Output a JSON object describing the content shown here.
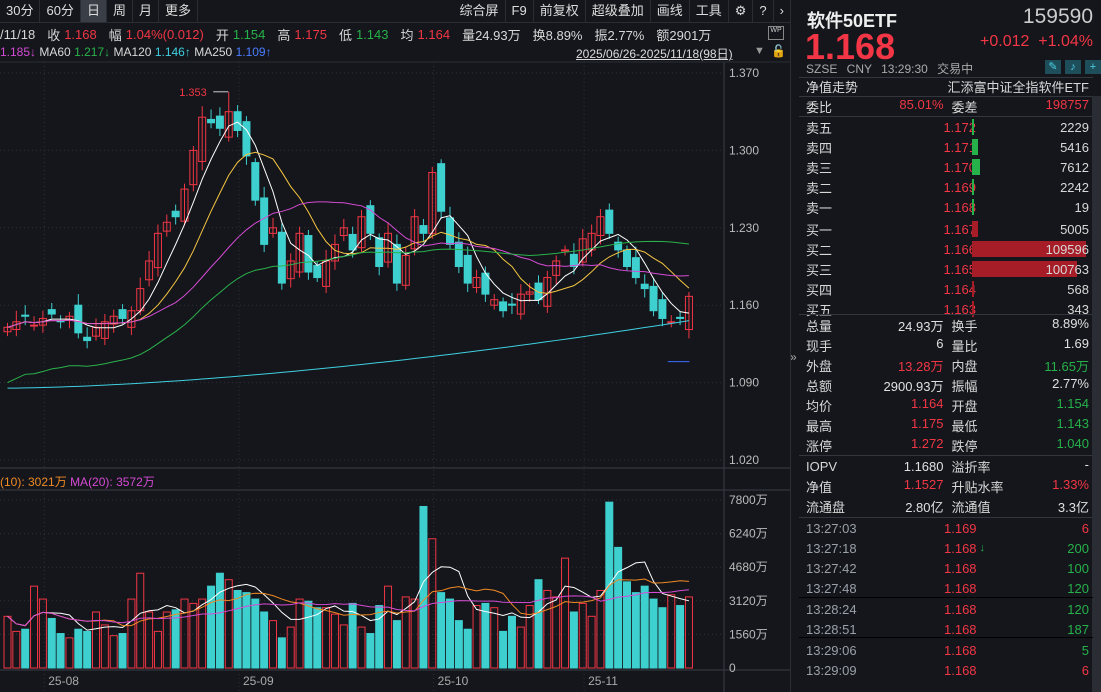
{
  "toolbar": {
    "periods": [
      "30分",
      "60分",
      "日",
      "周",
      "月",
      "更多"
    ],
    "active": "日",
    "tools": [
      "综合屏",
      "F9",
      "前复权",
      "超级叠加",
      "画线",
      "工具"
    ]
  },
  "info": {
    "date": "/11/18",
    "close_label": "收",
    "close": "1.168",
    "amp_label": "幅",
    "amp": "1.04%(0.012)",
    "open_label": "开",
    "open": "1.154",
    "high_label": "高",
    "high": "1.175",
    "low_label": "低",
    "low": "1.143",
    "avg_label": "均",
    "avg": "1.164",
    "vol": "量24.93万",
    "turnover": "换8.89%",
    "swing": "振2.77%",
    "amount": "额2901万"
  },
  "ma": {
    "ma_partial": "1.185↓",
    "ma60_label": "MA60",
    "ma60": "1.217↓",
    "ma120_label": "MA120",
    "ma120": "1.146↑",
    "ma250_label": "MA250",
    "ma250": "1.109↑"
  },
  "range": "2025/06/26-2025/11/18(98日)",
  "vol_header": {
    "ma10": "(10): 3021万",
    "ma20": "MA(20): 3572万"
  },
  "colors": {
    "up": "#f23645",
    "down": "#3ecfcf",
    "ma5": "#ffffff",
    "ma10": "#f5c542",
    "ma20": "#d54bd5",
    "ma60": "#2bb24c",
    "ma120": "#3fd0e0",
    "ma250": "#3b6cff"
  },
  "chart_data": {
    "type": "candlestick",
    "price_ticks": [
      "1.370",
      "1.300",
      "1.230",
      "1.160",
      "1.090",
      "1.020"
    ],
    "price_range": [
      1.02,
      1.37
    ],
    "vol_ticks": [
      "7800万",
      "6240万",
      "4680万",
      "3120万",
      "1560万",
      "0"
    ],
    "vol_range": [
      0,
      7800
    ],
    "x_labels": [
      {
        "label": "25-08",
        "index": 5
      },
      {
        "label": "25-09",
        "index": 27
      },
      {
        "label": "25-10",
        "index": 49
      },
      {
        "label": "25-11",
        "index": 66
      }
    ],
    "high_annotation": "1.353",
    "close": [
      1.14,
      1.145,
      1.15,
      1.142,
      1.148,
      1.152,
      1.145,
      1.15,
      1.135,
      1.128,
      1.14,
      1.145,
      1.15,
      1.148,
      1.155,
      1.175,
      1.2,
      1.225,
      1.235,
      1.24,
      1.265,
      1.3,
      1.33,
      1.325,
      1.32,
      1.335,
      1.318,
      1.295,
      1.255,
      1.215,
      1.23,
      1.18,
      1.2,
      1.225,
      1.19,
      1.185,
      1.2,
      1.215,
      1.23,
      1.21,
      1.24,
      1.225,
      1.195,
      1.225,
      1.18,
      1.205,
      1.24,
      1.225,
      1.28,
      1.245,
      1.215,
      1.195,
      1.18,
      1.185,
      1.17,
      1.165,
      1.155,
      1.16,
      1.17,
      1.172,
      1.165,
      1.185,
      1.2,
      1.21,
      1.195,
      1.22,
      1.225,
      1.24,
      1.225,
      1.21,
      1.195,
      1.185,
      1.175,
      1.155,
      1.148,
      1.145,
      1.148,
      1.168
    ],
    "volume": [
      2400,
      1700,
      1800,
      3800,
      3200,
      2300,
      1600,
      1400,
      1800,
      1700,
      2600,
      2000,
      1500,
      1600,
      3200,
      4400,
      2600,
      1700,
      2600,
      2700,
      3200,
      3000,
      3200,
      3800,
      4400,
      4100,
      3600,
      3500,
      3200,
      2600,
      2200,
      1400,
      1900,
      3200,
      3100,
      2800,
      2800,
      2500,
      2000,
      3000,
      1900,
      1600,
      2900,
      3800,
      2200,
      3300,
      3200,
      7500,
      6000,
      3500,
      3200,
      2200,
      1800,
      2900,
      3000,
      2800,
      1700,
      2400,
      1900,
      2900,
      4100,
      3600,
      3300,
      5100,
      2600,
      3000,
      2400,
      3600,
      7700,
      5600,
      4000,
      3500,
      3800,
      3200,
      2800,
      3400,
      2900,
      3300
    ],
    "ma5_vol_current": "",
    "ma_last": {
      "ma120": 1.146,
      "ma250": 1.109
    }
  },
  "quote": {
    "name": "软件50ETF",
    "code": "159590",
    "price": "1.168",
    "change": "+0.012",
    "pct": "+1.04%",
    "meta": "SZSE CNY 13:29:30 交易中",
    "nav_label": "净值走势",
    "fund_name": "汇添富中证全指软件ETF",
    "wb_label": "委比",
    "wb": "85.01%",
    "wc_label": "委差",
    "wc": "198757"
  },
  "book": {
    "asks": [
      {
        "label": "卖五",
        "price": "1.172",
        "vol": "2229",
        "frac": 0.02
      },
      {
        "label": "卖四",
        "price": "1.171",
        "vol": "5416",
        "frac": 0.05
      },
      {
        "label": "卖三",
        "price": "1.170",
        "vol": "7612",
        "frac": 0.07
      },
      {
        "label": "卖二",
        "price": "1.169",
        "vol": "2242",
        "frac": 0.02
      },
      {
        "label": "卖一",
        "price": "1.168",
        "vol": "19",
        "frac": 0.0
      }
    ],
    "bids": [
      {
        "label": "买一",
        "price": "1.167",
        "vol": "5005",
        "frac": 0.05
      },
      {
        "label": "买二",
        "price": "1.166",
        "vol": "109596",
        "frac": 1.0
      },
      {
        "label": "买三",
        "price": "1.165",
        "vol": "100763",
        "frac": 0.92
      },
      {
        "label": "买四",
        "price": "1.164",
        "vol": "568",
        "frac": 0.01
      },
      {
        "label": "买五",
        "price": "1.163",
        "vol": "343",
        "frac": 0.0
      }
    ]
  },
  "stats": [
    [
      {
        "l": "总量",
        "v": "24.93万",
        "c": "w"
      },
      {
        "l": "换手",
        "v": "8.89%",
        "c": "w"
      }
    ],
    [
      {
        "l": "现手",
        "v": "6",
        "c": "w"
      },
      {
        "l": "量比",
        "v": "1.69",
        "c": "w"
      }
    ],
    [
      {
        "l": "外盘",
        "v": "13.28万",
        "c": "r"
      },
      {
        "l": "内盘",
        "v": "11.65万",
        "c": "g"
      }
    ],
    [
      {
        "l": "总额",
        "v": "2900.93万",
        "c": "w"
      },
      {
        "l": "振幅",
        "v": "2.77%",
        "c": "w"
      }
    ],
    [
      {
        "l": "均价",
        "v": "1.164",
        "c": "r"
      },
      {
        "l": "开盘",
        "v": "1.154",
        "c": "g"
      }
    ],
    [
      {
        "l": "最高",
        "v": "1.175",
        "c": "r"
      },
      {
        "l": "最低",
        "v": "1.143",
        "c": "g"
      }
    ],
    [
      {
        "l": "涨停",
        "v": "1.272",
        "c": "r"
      },
      {
        "l": "跌停",
        "v": "1.040",
        "c": "g"
      }
    ]
  ],
  "fund": [
    [
      {
        "l": "IOPV",
        "v": "1.1680",
        "c": "w"
      },
      {
        "l": "溢折率",
        "v": "-",
        "c": "w"
      }
    ],
    [
      {
        "l": "净值",
        "v": "1.1527",
        "c": "r"
      },
      {
        "l": "升贴水率",
        "v": "1.33%",
        "c": "r"
      }
    ],
    [
      {
        "l": "流通盘",
        "v": "2.80亿",
        "c": "w"
      },
      {
        "l": "流通值",
        "v": "3.3亿",
        "c": "w"
      }
    ]
  ],
  "ticks": [
    {
      "t": "13:27:03",
      "p": "1.169",
      "v": "6",
      "c": "r",
      "arrow": ""
    },
    {
      "t": "13:27:18",
      "p": "1.168",
      "v": "200",
      "c": "g",
      "arrow": "↓"
    },
    {
      "t": "13:27:42",
      "p": "1.168",
      "v": "100",
      "c": "g",
      "arrow": ""
    },
    {
      "t": "13:27:48",
      "p": "1.168",
      "v": "120",
      "c": "g",
      "arrow": ""
    },
    {
      "t": "13:28:24",
      "p": "1.168",
      "v": "120",
      "c": "g",
      "arrow": ""
    },
    {
      "t": "13:28:51",
      "p": "1.168",
      "v": "187",
      "c": "g",
      "arrow": ""
    },
    {
      "t": "13:29:06",
      "p": "1.168",
      "v": "5",
      "c": "g",
      "arrow": ""
    },
    {
      "t": "13:29:09",
      "p": "1.168",
      "v": "6",
      "c": "r",
      "arrow": ""
    }
  ]
}
